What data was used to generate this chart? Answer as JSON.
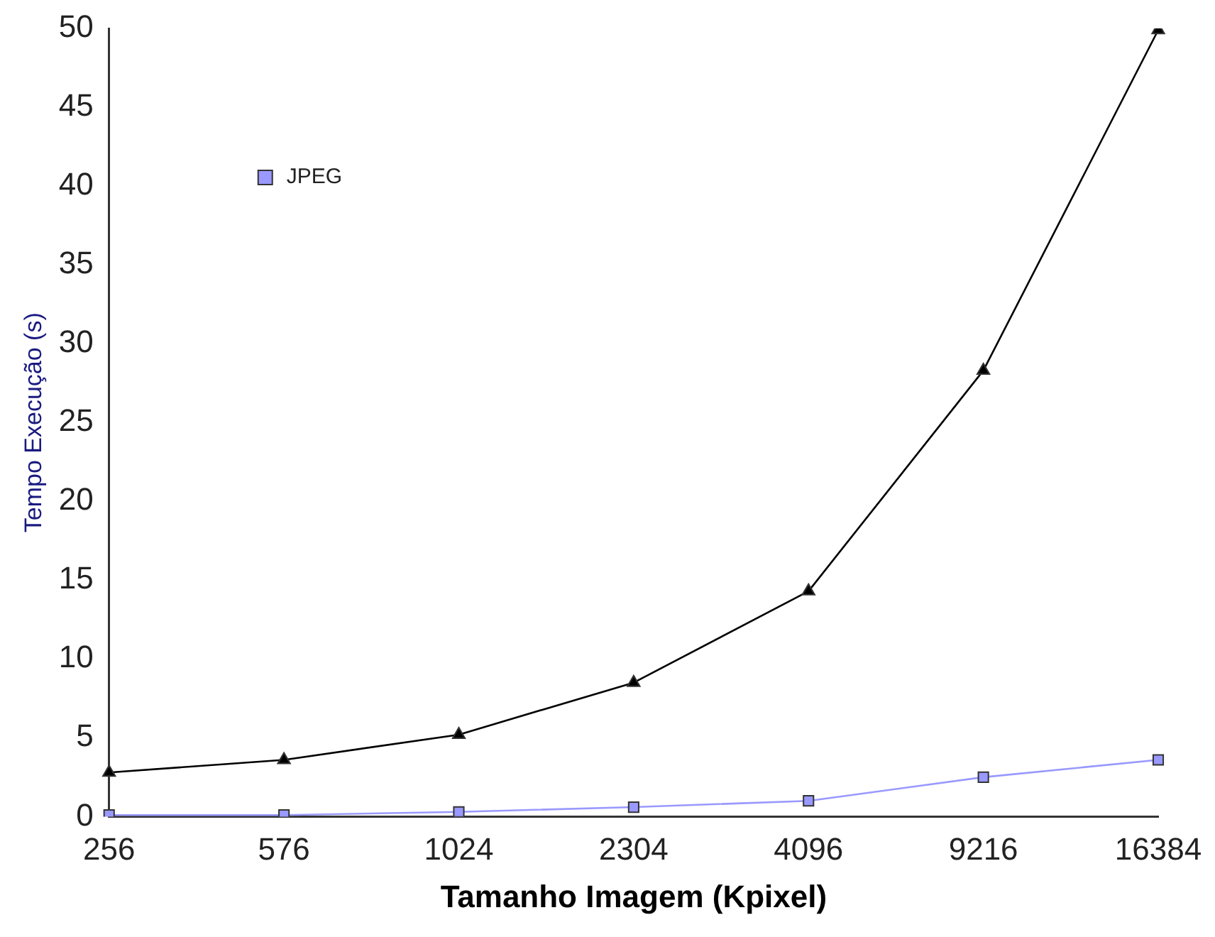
{
  "chart_data": {
    "type": "line",
    "xlabel": "Tamanho Imagem (Kpixel)",
    "ylabel": "Tempo Execução (s)",
    "categories": [
      "256",
      "576",
      "1024",
      "2304",
      "4096",
      "9216",
      "16384"
    ],
    "series": [
      {
        "name": "JPEG",
        "color": "#9999ff",
        "marker": "square",
        "values": [
          0.1,
          0.1,
          0.3,
          0.6,
          1.0,
          2.5,
          3.6
        ]
      },
      {
        "color": "#000000",
        "marker": "triangle",
        "values": [
          2.8,
          3.6,
          5.2,
          8.5,
          14.3,
          28.3,
          49.9
        ]
      }
    ],
    "ylim": [
      0,
      50
    ],
    "yticks": [
      0,
      5,
      10,
      15,
      20,
      25,
      30,
      35,
      40,
      45,
      50
    ],
    "grid": false,
    "legend": "top left",
    "line_style": "solid"
  }
}
